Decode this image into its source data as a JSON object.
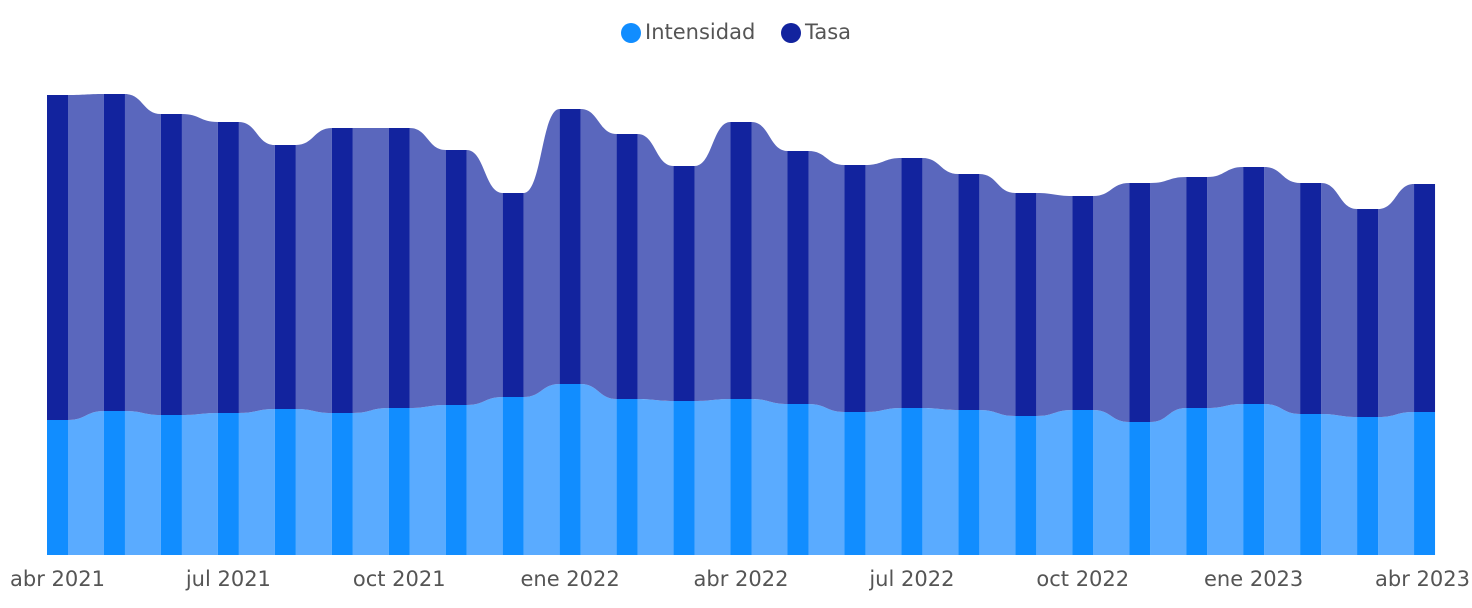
{
  "chart_data": {
    "type": "ribbon",
    "categories": [
      "abr 2021",
      null,
      null,
      "jul 2021",
      null,
      null,
      "oct 2021",
      null,
      null,
      "ene 2022",
      null,
      null,
      "abr 2022",
      null,
      null,
      "jul 2022",
      null,
      null,
      "oct 2022",
      null,
      null,
      "ene 2023",
      null,
      null,
      "abr 2023"
    ],
    "series": [
      {
        "name": "Intensidad",
        "color": "#118dff",
        "ribbon_color": "#5aabff",
        "values": [
          135,
          144,
          140,
          142,
          146,
          142,
          147,
          150,
          158,
          171,
          156,
          154,
          156,
          151,
          143,
          147,
          145,
          139,
          145,
          133,
          147,
          151,
          141,
          138,
          143
        ]
      },
      {
        "name": "Tasa",
        "color": "#12239e",
        "ribbon_color": "#5a67bd",
        "values": [
          325,
          317,
          301,
          291,
          264,
          285,
          280,
          255,
          204,
          275,
          265,
          235,
          277,
          253,
          247,
          250,
          236,
          223,
          214,
          239,
          231,
          237,
          231,
          208,
          228
        ]
      }
    ],
    "ylim": [
      0,
      500
    ],
    "legend": "top"
  }
}
